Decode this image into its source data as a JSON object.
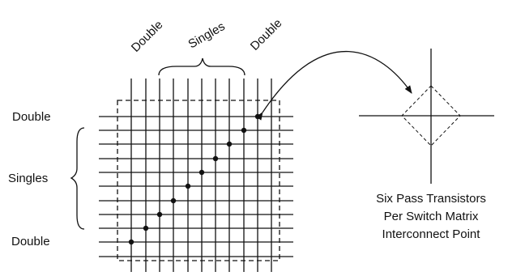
{
  "labels": {
    "top_left_double": "Double",
    "top_singles": "Singles",
    "top_right_double": "Double",
    "left_top_double": "Double",
    "left_singles": "Singles",
    "left_bottom_double": "Double"
  },
  "caption": {
    "line1": "Six Pass Transistors",
    "line2": "Per Switch Matrix",
    "line3": "Interconnect Point"
  },
  "grid": {
    "vertical_lines": 11,
    "horizontal_lines": 11,
    "diagonal_connection_points": 10
  }
}
